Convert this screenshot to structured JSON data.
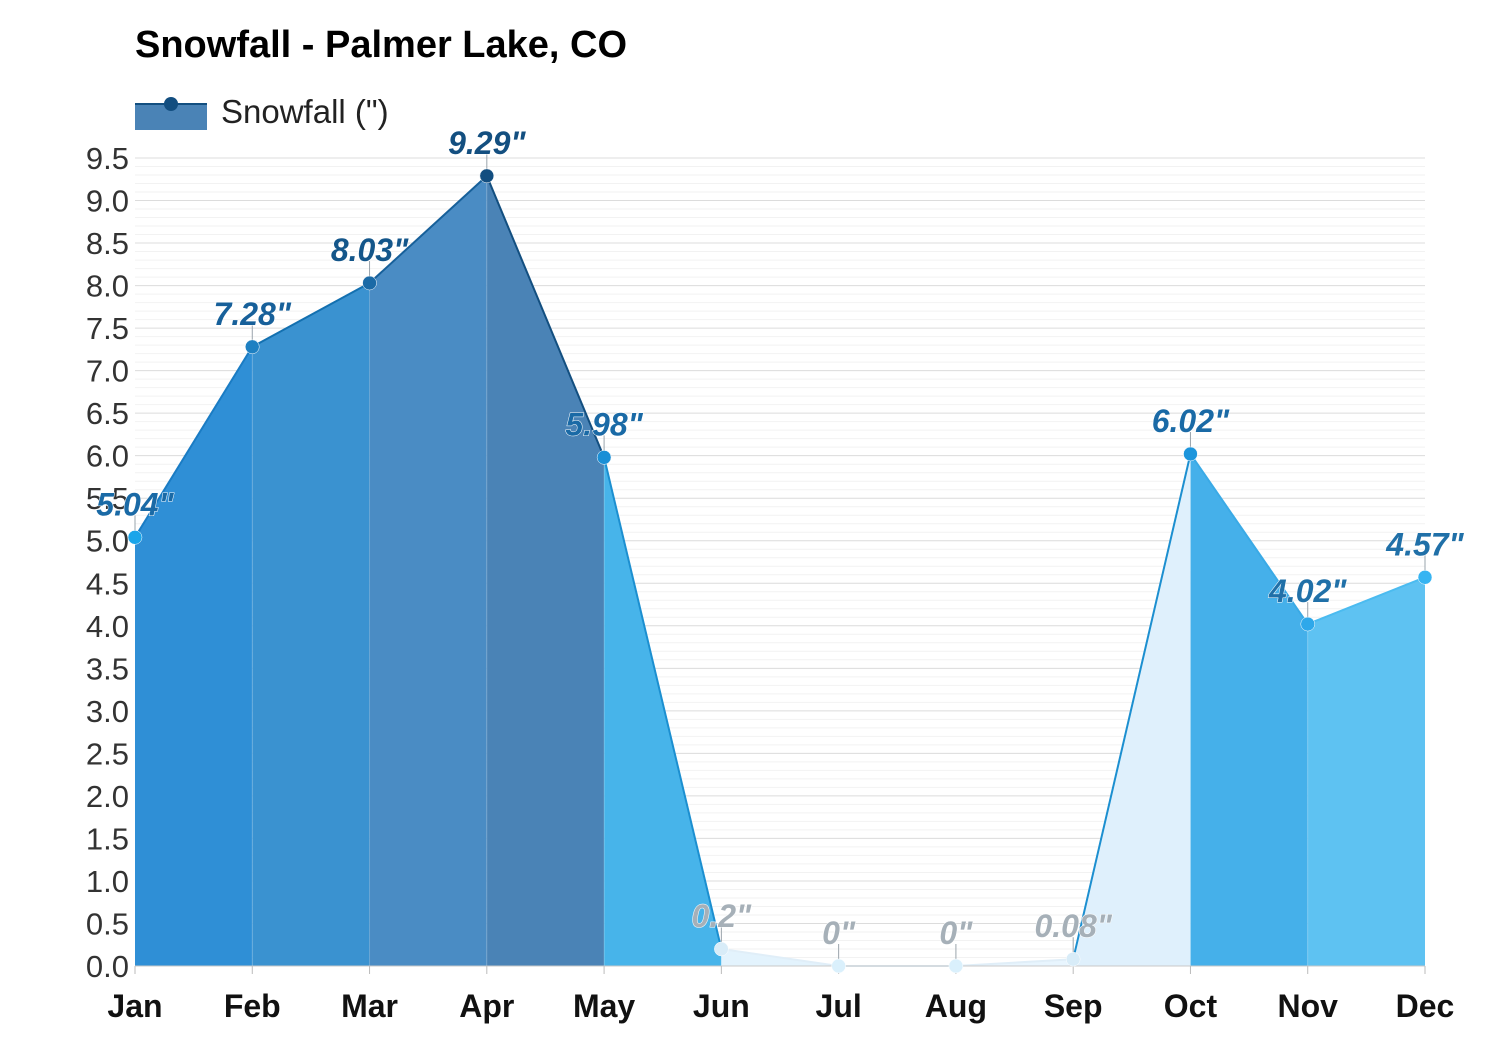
{
  "chart_data": {
    "type": "area",
    "title": "Snowfall - Palmer Lake, CO",
    "legend": {
      "label": "Snowfall (\")",
      "placement": "top-left"
    },
    "categories": [
      "Jan",
      "Feb",
      "Mar",
      "Apr",
      "May",
      "Jun",
      "Jul",
      "Aug",
      "Sep",
      "Oct",
      "Nov",
      "Dec"
    ],
    "series": [
      {
        "name": "Snowfall (\")",
        "values": [
          5.04,
          7.28,
          8.03,
          9.29,
          5.98,
          0.2,
          0,
          0,
          0.08,
          6.02,
          4.02,
          4.57
        ]
      }
    ],
    "data_labels": [
      "5.04\"",
      "7.28\"",
      "8.03\"",
      "9.29\"",
      "5.98\"",
      "0.2\"",
      "0\"",
      "0\"",
      "0.08\"",
      "6.02\"",
      "4.02\"",
      "4.57\""
    ],
    "yticks": [
      "0.0",
      "0.5",
      "1.0",
      "1.5",
      "2.0",
      "2.5",
      "3.0",
      "3.5",
      "4.0",
      "4.5",
      "5.0",
      "5.5",
      "6.0",
      "6.5",
      "7.0",
      "7.5",
      "8.0",
      "8.5",
      "9.0",
      "9.5"
    ],
    "ylim": [
      0,
      9.5
    ],
    "grid": true,
    "colors": {
      "segments": [
        "#2f8fd6",
        "#3a92d0",
        "#4a8cc4",
        "#4a83b6",
        "#47b4ea",
        "#e3f3fd",
        "#e8f5fe",
        "#e8f5fe",
        "#dff0fc",
        "#45b0ea",
        "#5ec2f2",
        "#6acbf7"
      ],
      "lines": [
        "#1a7cc4",
        "#1370b0",
        "#17609a",
        "#134f80",
        "#1c8fd0",
        "#e0eef8",
        "#e0eef8",
        "#e0eef8",
        "#1c8fd0",
        "#3aaae6",
        "#4bbbf0",
        "#4bbbf0"
      ],
      "points": [
        "#1aa5ea",
        "#1e80c2",
        "#1b6aa6",
        "#124e80",
        "#1a8fd6",
        "#d8ecf8",
        "#daf0fc",
        "#daf0fc",
        "#d8ecf8",
        "#1c95dc",
        "#2ea8ea",
        "#36b4f2"
      ],
      "labels": [
        "#1a6aa6",
        "#17609a",
        "#14568a",
        "#134f80",
        "#1a6aa6",
        "#a6b0b8",
        "#a6b0b8",
        "#a6b0b8",
        "#a6b0b8",
        "#1a6aa6",
        "#2070a8",
        "#2070a8"
      ],
      "legend": "#4a83b6"
    }
  }
}
